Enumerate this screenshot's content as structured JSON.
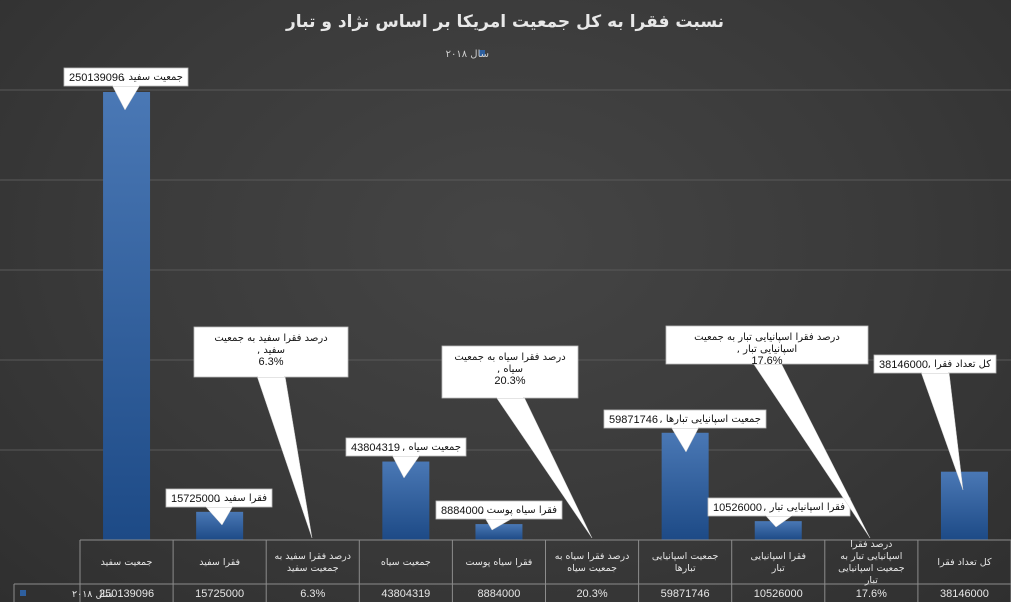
{
  "chart_data": {
    "type": "bar",
    "title": "نسبت فقرا به کل جمعیت امریکا بر اساس  نژاد و تبار",
    "legend_position": "top",
    "grid": true,
    "ylim": [
      0,
      250139096
    ],
    "categories": [
      "جمعیت سفید",
      "فقرا سفید",
      "درصد فقرا سفید به جمعیت سفید",
      "جمعیت سیاه",
      "فقرا سیاه پوست",
      "درصد فقرا سیاه به جمعیت سیاه",
      "جمعیت اسپانیایی تبارها",
      "فقرا اسپانیایی تبار",
      "درصد فقرا اسپانیایی تبار به جمعیت اسپانیایی تبار",
      "کل تعداد فقرا"
    ],
    "series": [
      {
        "name": "سال ۲۰۱۸",
        "values": [
          250139096,
          15725000,
          0.063,
          43804319,
          8884000,
          0.203,
          59871746,
          10526000,
          0.176,
          38146000
        ],
        "display": [
          "250139096",
          "15725000",
          "6.3%",
          "43804319",
          "8884000",
          "20.3%",
          "59871746",
          "10526000",
          "17.6%",
          "38146000"
        ]
      }
    ],
    "data_labels": [
      {
        "name": "جمعیت سفید",
        "value": "250139096"
      },
      {
        "name": "فقرا سفید",
        "value": "15725000"
      },
      {
        "name": "درصد فقرا سفید به جمعیت سفید",
        "value": "6.3%"
      },
      {
        "name": "جمعیت سیاه",
        "value": "43804319"
      },
      {
        "name": "فقرا سیاه پوست",
        "value": "8884000"
      },
      {
        "name": "درصد فقرا سیاه به جمعیت سیاه",
        "value": "20.3%"
      },
      {
        "name": "جمعیت اسپانیایی تبارها",
        "value": "59871746"
      },
      {
        "name": "فقرا اسپانیایی تبار",
        "value": "10526000"
      },
      {
        "name": "درصد فقرا اسپانیایی تبار به جمعیت اسپانیایی تبار",
        "value": "17.6%"
      },
      {
        "name": "کل تعداد فقرا",
        "value": "38146000"
      }
    ],
    "colors": {
      "bar_top": "#4a78b5",
      "bar_bottom": "#1d4a86",
      "grid": "#595959",
      "table_border": "#8c8c8c",
      "callout_fill": "#ffffff"
    }
  }
}
